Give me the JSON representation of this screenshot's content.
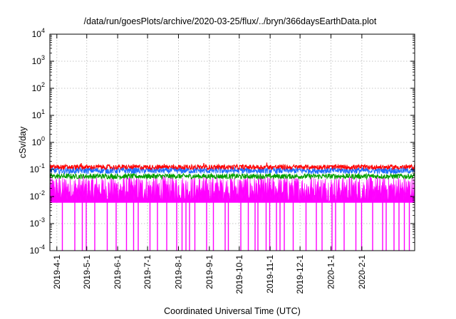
{
  "chart_data": {
    "type": "line",
    "title": "/data/run/goesPlots/archive/2020-03-25/flux/../bryn/366daysEarthData.plot",
    "xlabel": "Coordinated Universal Time (UTC)",
    "ylabel": "cSv/day",
    "yscale": "log",
    "ylim": [
      0.0001,
      10000
    ],
    "xlim": [
      "2019-03-25",
      "2020-03-25"
    ],
    "grid": true,
    "legend": "none",
    "y_ticks": [
      {
        "base": "10",
        "exp": "4"
      },
      {
        "base": "10",
        "exp": "3"
      },
      {
        "base": "10",
        "exp": "2"
      },
      {
        "base": "10",
        "exp": "1"
      },
      {
        "base": "10",
        "exp": "0"
      },
      {
        "base": "10",
        "exp": "-1"
      },
      {
        "base": "10",
        "exp": "-2"
      },
      {
        "base": "10",
        "exp": "-3"
      },
      {
        "base": "10",
        "exp": "-4"
      }
    ],
    "x_ticks": [
      "2019-4-1",
      "2019-5-1",
      "2019-6-1",
      "2019-7-1",
      "2019-8-1",
      "2019-9-1",
      "2019-10-1",
      "2019-11-1",
      "2019-12-1",
      "2020-1-1",
      "2020-2-1"
    ],
    "series": [
      {
        "color": "#ff0000",
        "typical": 0.12,
        "spread": [
          0.1,
          0.15
        ],
        "peak": 0.2
      },
      {
        "color": "#1e6eff",
        "typical": 0.09,
        "spread": [
          0.07,
          0.12
        ]
      },
      {
        "color": "#00a000",
        "typical": 0.055,
        "spread": [
          0.045,
          0.07
        ]
      },
      {
        "color": "#ff00ff",
        "typical": 0.025,
        "spread": [
          0.006,
          0.06
        ],
        "dropout_floor": 0.0001
      }
    ]
  }
}
